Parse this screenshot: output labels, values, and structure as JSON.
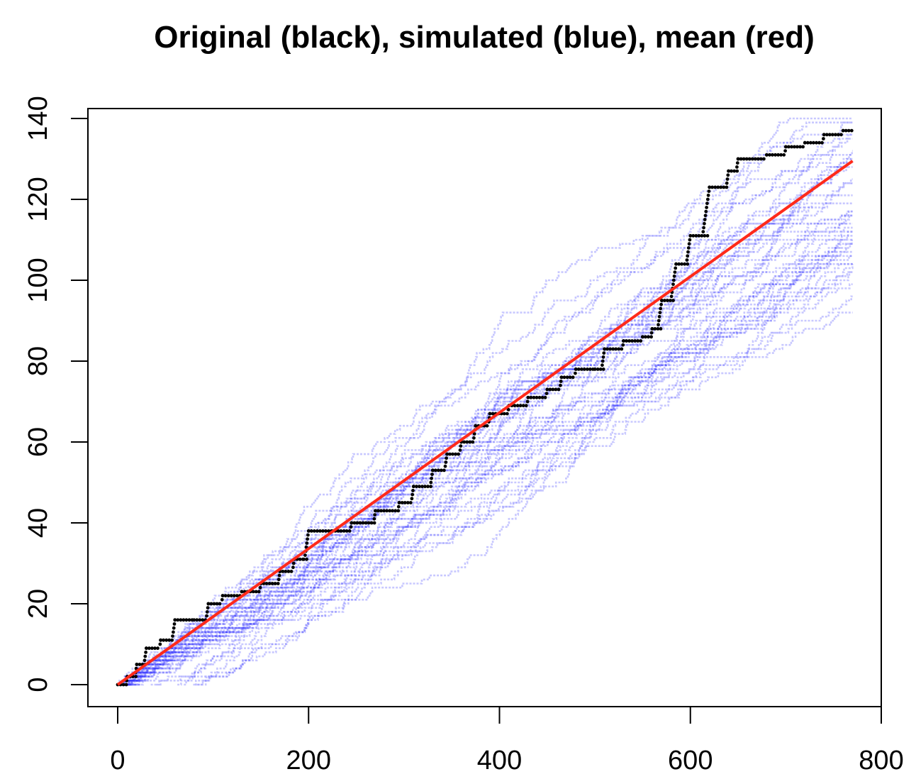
{
  "chart_data": {
    "type": "scatter",
    "title": "Original (black), simulated (blue), mean (red)",
    "xlabel": "",
    "ylabel": "",
    "xlim": [
      0,
      770
    ],
    "ylim": [
      0,
      140
    ],
    "x_ticks": [
      "0",
      "200",
      "400",
      "600",
      "800"
    ],
    "y_ticks": [
      "0",
      "20",
      "40",
      "60",
      "80",
      "100",
      "120",
      "140"
    ],
    "grid": false,
    "legend": "none (colors described in title)",
    "colors": {
      "original": "#000000",
      "simulated": "#3b3bff",
      "mean": "#ff2a1a"
    },
    "series": [
      {
        "color_name": "black",
        "kind": "step-points",
        "x": [
          0,
          10,
          20,
          30,
          45,
          60,
          80,
          95,
          110,
          130,
          150,
          170,
          185,
          195,
          200,
          225,
          245,
          270,
          295,
          310,
          330,
          345,
          360,
          375,
          390,
          410,
          430,
          450,
          465,
          480,
          500,
          510,
          530,
          550,
          560,
          570,
          585,
          600,
          620,
          640,
          650,
          680,
          700,
          720,
          740,
          760,
          770
        ],
        "y": [
          0,
          2,
          5,
          9,
          11,
          16,
          16,
          20,
          22,
          23,
          25,
          28,
          31,
          31,
          38,
          38,
          40,
          43,
          45,
          49,
          53,
          57,
          60,
          64,
          67,
          69,
          71,
          73,
          76,
          78,
          78,
          83,
          85,
          86,
          88,
          95,
          104,
          111,
          123,
          127,
          130,
          131,
          133,
          134,
          136,
          137,
          137
        ]
      },
      {
        "color_name": "red",
        "kind": "line",
        "x": [
          0,
          770
        ],
        "y": [
          0,
          129.5
        ]
      }
    ],
    "simulations": {
      "color_name": "blue",
      "count": 40,
      "end_x": 770,
      "end_y_range": [
        103,
        141
      ]
    }
  }
}
